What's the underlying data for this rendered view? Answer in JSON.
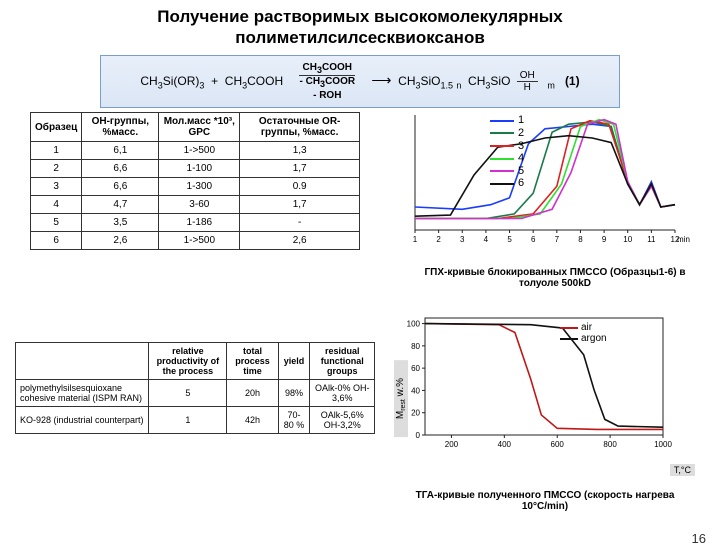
{
  "title_line1": "Получение растворимых высокомолекулярных",
  "title_line2": "полиметилсилсесквиоксанов",
  "reaction": {
    "left": "CH₃Si(OR)₃  +  CH₃COOH",
    "over_top": "CH₃COOH",
    "over_bot1": "- CH₃COOR",
    "over_bot2": "- ROH",
    "right1": "CH₃SiO₁.₅",
    "right_n": "n",
    "right2": "CH₃SiO",
    "right_oh": "OH",
    "right_h": "H",
    "right_m": "m",
    "eqnum": "(1)"
  },
  "table1": {
    "headers": [
      "Образец",
      "OH-группы, %масс.",
      "Мол.масс *10³, GPC",
      "Остаточные OR-группы, %масс."
    ],
    "rows": [
      [
        "1",
        "6,1",
        "1->500",
        "1,3"
      ],
      [
        "2",
        "6,6",
        "1-100",
        "1,7"
      ],
      [
        "3",
        "6,6",
        "1-300",
        "0.9"
      ],
      [
        "4",
        "4,7",
        "3-60",
        "1,7"
      ],
      [
        "5",
        "3,5",
        "1-186",
        "-"
      ],
      [
        "6",
        "2,6",
        "1->500",
        "2,6"
      ]
    ]
  },
  "table2": {
    "headers": [
      "",
      "relative productivity of the process",
      "total process time",
      "yield",
      "residual functional groups"
    ],
    "rows": [
      [
        "polymethylsilsesquioxane cohesive material (ISPM RAN)",
        "5",
        "20h",
        "98%",
        "OAlk-0% OH-3,6%"
      ],
      [
        "KO-928 (industrial counterpart)",
        "1",
        "42h",
        "70-80 %",
        "OAlk-5,6% OH-3,2%"
      ]
    ]
  },
  "chart1": {
    "type": "line",
    "xmin": 1,
    "xmax": 12,
    "xtick_step": 1,
    "ymin": 0,
    "ymax": 100,
    "xaxis_label": "min",
    "background": "#ffffff",
    "axis_color": "#222222",
    "series_colors": [
      "#1a3cff",
      "#1a7a4a",
      "#e02020",
      "#30e030",
      "#d030d0",
      "#111111"
    ],
    "line_width": 1.6,
    "legend_labels": [
      "1",
      "2",
      "3",
      "4",
      "5",
      "6"
    ],
    "series": [
      [
        [
          1,
          20
        ],
        [
          3,
          18
        ],
        [
          4.2,
          22
        ],
        [
          5,
          28
        ],
        [
          5.8,
          75
        ],
        [
          6.5,
          88
        ],
        [
          7.5,
          90
        ],
        [
          8.5,
          92
        ],
        [
          9.3,
          90
        ],
        [
          10,
          40
        ],
        [
          10.5,
          22
        ],
        [
          11,
          42
        ],
        [
          11.4,
          20
        ],
        [
          12,
          22
        ]
      ],
      [
        [
          1,
          10
        ],
        [
          4,
          10
        ],
        [
          5.2,
          14
        ],
        [
          6,
          32
        ],
        [
          6.8,
          85
        ],
        [
          7.5,
          92
        ],
        [
          8.5,
          94
        ],
        [
          9.3,
          90
        ],
        [
          10,
          40
        ],
        [
          10.5,
          22
        ],
        [
          11,
          40
        ],
        [
          11.4,
          20
        ],
        [
          12,
          22
        ]
      ],
      [
        [
          1,
          10
        ],
        [
          4.5,
          10
        ],
        [
          6,
          14
        ],
        [
          7,
          38
        ],
        [
          7.6,
          88
        ],
        [
          8.4,
          95
        ],
        [
          9.2,
          92
        ],
        [
          10,
          42
        ],
        [
          10.5,
          22
        ],
        [
          11,
          40
        ],
        [
          11.4,
          20
        ],
        [
          12,
          22
        ]
      ],
      [
        [
          1,
          10
        ],
        [
          5,
          10
        ],
        [
          6.3,
          14
        ],
        [
          7.2,
          40
        ],
        [
          8,
          90
        ],
        [
          8.8,
          96
        ],
        [
          9.4,
          92
        ],
        [
          10,
          42
        ],
        [
          10.5,
          22
        ],
        [
          11,
          38
        ],
        [
          11.4,
          20
        ],
        [
          12,
          22
        ]
      ],
      [
        [
          1,
          10
        ],
        [
          5.5,
          10
        ],
        [
          6.8,
          18
        ],
        [
          7.6,
          50
        ],
        [
          8.3,
          92
        ],
        [
          9,
          96
        ],
        [
          9.5,
          92
        ],
        [
          10,
          42
        ],
        [
          10.5,
          22
        ],
        [
          11,
          38
        ],
        [
          11.4,
          20
        ],
        [
          12,
          22
        ]
      ],
      [
        [
          1,
          12
        ],
        [
          2.5,
          13
        ],
        [
          3.5,
          48
        ],
        [
          4.5,
          72
        ],
        [
          5.5,
          75
        ],
        [
          6.5,
          80
        ],
        [
          7.5,
          82
        ],
        [
          8.5,
          80
        ],
        [
          9.3,
          76
        ],
        [
          10,
          40
        ],
        [
          10.5,
          22
        ],
        [
          11,
          40
        ],
        [
          11.4,
          20
        ],
        [
          12,
          22
        ]
      ]
    ]
  },
  "caption1": "ГПХ-кривые блокированных ПМССО (Образцы1-6) в толуоле 500kD",
  "chart2": {
    "type": "line",
    "xmin": 100,
    "xmax": 1000,
    "xticks": [
      200,
      400,
      600,
      800,
      1000
    ],
    "ymin": 0,
    "ymax": 105,
    "yticks": [
      0,
      20,
      40,
      60,
      80,
      100
    ],
    "background": "#ffffff",
    "axis_color": "#222222",
    "line_width": 1.6,
    "legend_labels": [
      "air",
      "argon"
    ],
    "series_colors": [
      "#c01818",
      "#111111"
    ],
    "series": [
      [
        [
          100,
          100
        ],
        [
          380,
          99
        ],
        [
          440,
          92
        ],
        [
          500,
          50
        ],
        [
          540,
          18
        ],
        [
          600,
          6
        ],
        [
          750,
          5
        ],
        [
          1000,
          5
        ]
      ],
      [
        [
          100,
          100
        ],
        [
          500,
          99
        ],
        [
          620,
          96
        ],
        [
          700,
          72
        ],
        [
          740,
          40
        ],
        [
          780,
          14
        ],
        [
          830,
          8
        ],
        [
          1000,
          7
        ]
      ]
    ]
  },
  "ylabel2": "M_rest w.%",
  "xlabel2": "T,°C",
  "caption2": "ТГА-кривые полученного ПМССО (скорость нагрева 10°C/min)",
  "pagenum": "16"
}
